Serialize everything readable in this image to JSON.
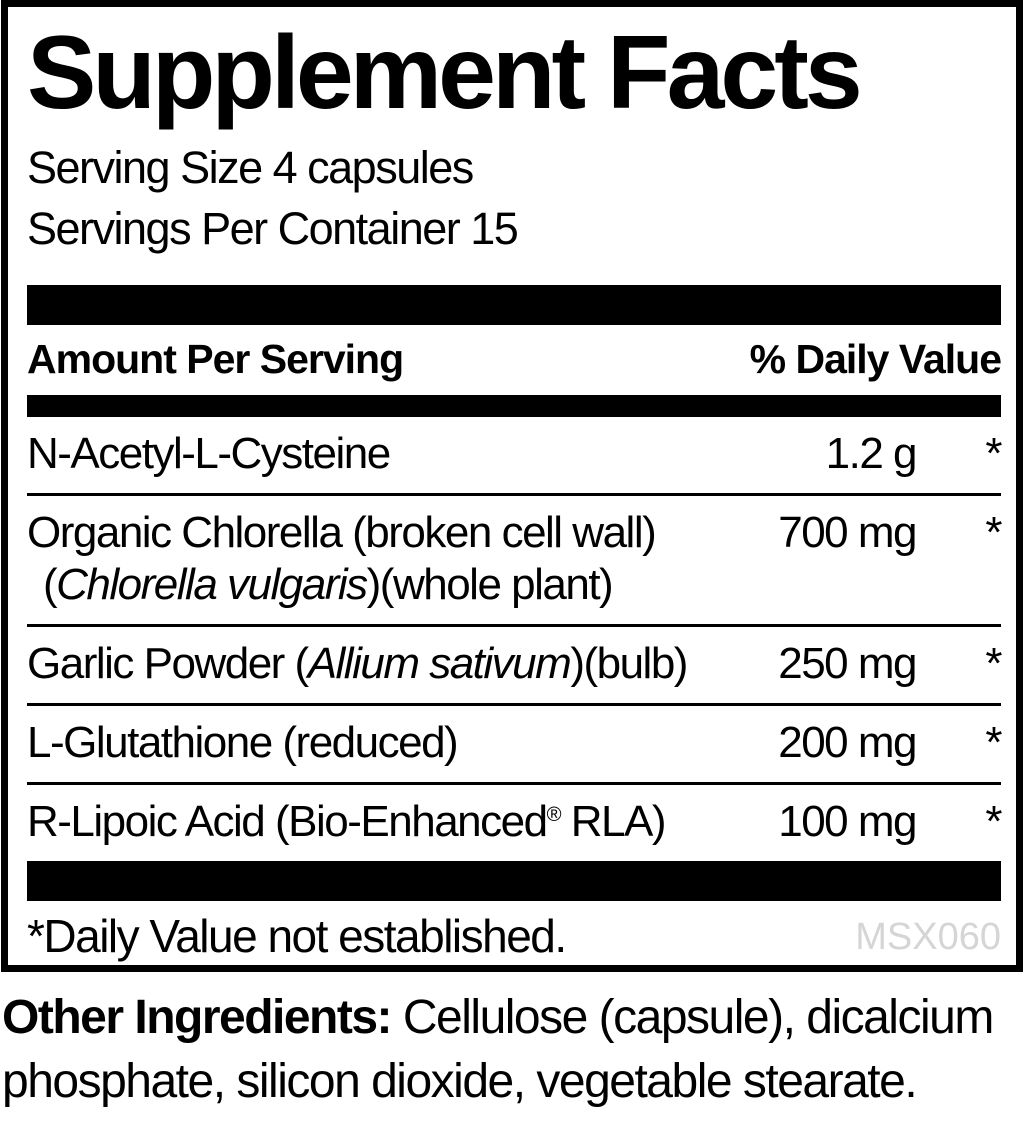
{
  "title": "Supplement Facts",
  "serving": {
    "size": "Serving Size 4 capsules",
    "per_container": "Servings Per Container 15"
  },
  "header": {
    "amount_label": "Amount Per Serving",
    "dv_label": "% Daily Value"
  },
  "rows": [
    {
      "pre": "N-Acetyl-L-Cysteine",
      "amount": "1.2 g",
      "dv": "*"
    },
    {
      "pre": "Organic Chlorella (broken cell wall)",
      "line2_pre": "(",
      "line2_italic": "Chlorella vulgaris",
      "line2_post": ")(whole plant)",
      "amount": "700 mg",
      "dv": "*"
    },
    {
      "pre": "Garlic Powder (",
      "italic": "Allium sativum",
      "post": ")(bulb)",
      "amount": "250 mg",
      "dv": "*"
    },
    {
      "pre": "L-Glutathione (reduced)",
      "amount": "200 mg",
      "dv": "*"
    },
    {
      "pre": "R-Lipoic Acid (Bio-Enhanced",
      "sup": "®",
      "post": " RLA)",
      "amount": "100 mg",
      "dv": "*"
    }
  ],
  "footnote": "*Daily Value not established.",
  "code": "MSX060",
  "other_ingredients": {
    "label": "Other Ingredients:",
    "line1_rest": " Cellulose (capsule), dicalcium",
    "line2": "phosphate, silicon dioxide, vegetable stearate."
  },
  "colors": {
    "text": "#000000",
    "bar": "#000000",
    "code_gray": "#d5d5d5"
  }
}
